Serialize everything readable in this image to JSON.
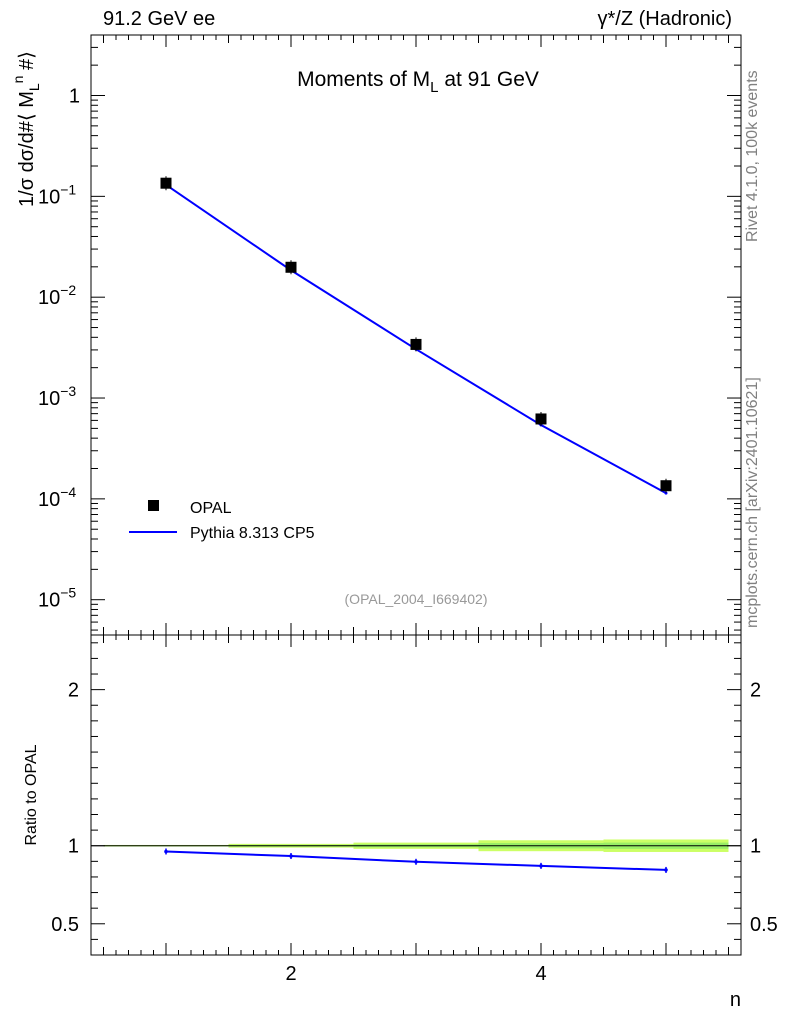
{
  "header": {
    "left_label": "91.2 GeV ee",
    "right_label": "γ*/Z (Hadronic)"
  },
  "side_labels": {
    "rivet": "Rivet 4.1.0,  100k events",
    "mcplots": "mcplots.cern.ch [arXiv:2401.10621]"
  },
  "chart_data": [
    {
      "type": "scatter",
      "panel": "main",
      "title": "Moments of M_L at 91 GeV",
      "title_main": "Moments of M",
      "title_sub": "L",
      "title_rest": " at 91 GeV",
      "ylabel": "1/σ  dσ/d#⟨ M_L^n #⟩",
      "ylabel_parts": {
        "a": "1/σ  dσ/d#⟨ M",
        "sub": "L",
        "sup": "n",
        "b": " #⟩"
      },
      "xlabel": "n",
      "xlim": [
        0.4,
        5.6
      ],
      "ylim_log10": [
        -5.35,
        0.6
      ],
      "yscale": "log",
      "y_ticks": [
        {
          "exp": 0,
          "label": "1",
          "sup": ""
        },
        {
          "exp": -1,
          "label": "10",
          "sup": "−1"
        },
        {
          "exp": -2,
          "label": "10",
          "sup": "−2"
        },
        {
          "exp": -3,
          "label": "10",
          "sup": "−3"
        },
        {
          "exp": -4,
          "label": "10",
          "sup": "−4"
        },
        {
          "exp": -5,
          "label": "10",
          "sup": "−5"
        }
      ],
      "watermark": "(OPAL_2004_I669402)",
      "legend": [
        {
          "name": "OPAL",
          "style": "marker",
          "color": "#000000"
        },
        {
          "name": "Pythia 8.313 CP5",
          "style": "line",
          "color": "#0000ff"
        }
      ],
      "legend_position": "bottom-left",
      "series": [
        {
          "name": "OPAL",
          "color": "#000000",
          "x": [
            1,
            2,
            3,
            4,
            5
          ],
          "y": [
            0.135,
            0.0198,
            0.0034,
            0.00062,
            0.000135
          ]
        },
        {
          "name": "Pythia 8.313 CP5",
          "color": "#0000ff",
          "x": [
            1,
            2,
            3,
            4,
            5
          ],
          "y": [
            0.13,
            0.0185,
            0.00305,
            0.00054,
            0.000114
          ]
        }
      ]
    },
    {
      "type": "line",
      "panel": "ratio",
      "ylabel": "Ratio to OPAL",
      "xlabel": "n",
      "xlim": [
        0.4,
        5.6
      ],
      "ylim": [
        0.3,
        2.35
      ],
      "y_ticks": [
        "0.5",
        "1",
        "2"
      ],
      "y_tick_values": [
        0.5,
        1,
        2
      ],
      "x_ticks": [
        "2",
        "4"
      ],
      "x_tick_values": [
        2,
        4
      ],
      "band_color": "#ccff66",
      "band_inner_color": "#99ee66",
      "band_halfwidths": [
        0.005,
        0.012,
        0.02,
        0.035,
        0.04
      ],
      "series": [
        {
          "name": "Pythia 8.313 CP5",
          "color": "#0000ff",
          "x": [
            1,
            2,
            3,
            4,
            5
          ],
          "y": [
            0.963,
            0.934,
            0.897,
            0.871,
            0.845
          ]
        }
      ]
    }
  ]
}
